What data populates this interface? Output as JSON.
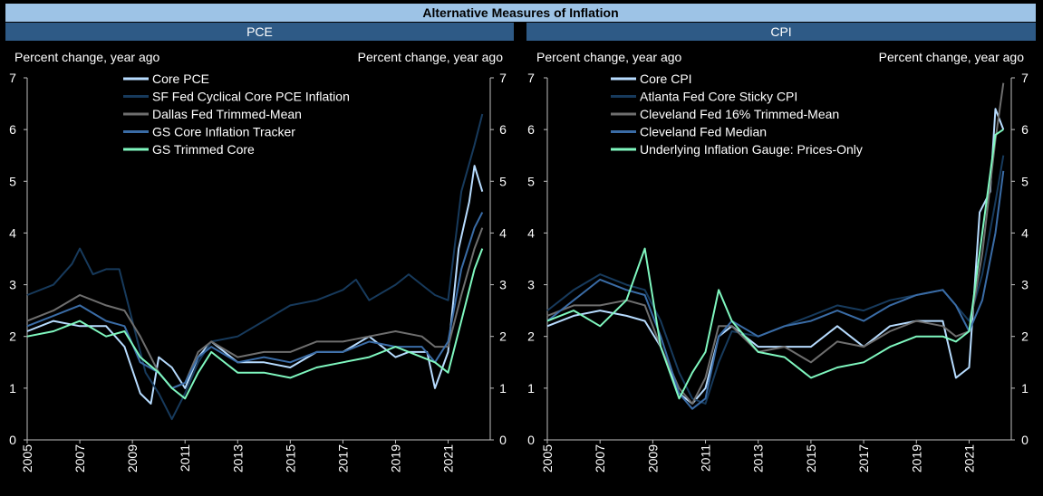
{
  "banner": "Alternative Measures of Inflation",
  "colors": {
    "c1": "#b7dcff",
    "c2": "#173a5c",
    "c3": "#6e6e6e",
    "c4": "#3a6ca6",
    "c5": "#7ff7bf"
  },
  "chart_data": [
    {
      "type": "line",
      "title": "PCE",
      "ylabel_left": "Percent change, year ago",
      "ylabel_right": "Percent change, year ago",
      "ylim": [
        0,
        7
      ],
      "xlim": [
        2005,
        2022.6
      ],
      "yticks": [
        "0",
        "1",
        "2",
        "3",
        "4",
        "5",
        "6",
        "7"
      ],
      "xticks": [
        "2005",
        "2007",
        "2009",
        "2011",
        "2013",
        "2015",
        "2017",
        "2019",
        "2021"
      ],
      "series": [
        {
          "name": "Core PCE",
          "color": "#b7dcff",
          "x": [
            2005,
            2006,
            2007,
            2008,
            2008.7,
            2009.3,
            2009.7,
            2010,
            2010.5,
            2011,
            2011.5,
            2012,
            2013,
            2014,
            2015,
            2016,
            2017,
            2018,
            2019,
            2019.5,
            2020.2,
            2020.5,
            2021,
            2021.4,
            2021.8,
            2022,
            2022.3
          ],
          "values": [
            2.1,
            2.3,
            2.2,
            2.2,
            1.8,
            0.9,
            0.7,
            1.6,
            1.4,
            1.0,
            1.6,
            1.9,
            1.5,
            1.5,
            1.4,
            1.7,
            1.7,
            2.0,
            1.6,
            1.7,
            1.7,
            1.0,
            1.7,
            3.7,
            4.6,
            5.3,
            4.8
          ]
        },
        {
          "name": "SF Fed Cyclical Core PCE Inflation",
          "color": "#173a5c",
          "x": [
            2005,
            2006,
            2006.7,
            2007,
            2007.5,
            2008,
            2008.5,
            2009,
            2009.5,
            2010,
            2010.5,
            2011,
            2011.5,
            2012,
            2013,
            2014,
            2015,
            2016,
            2017,
            2017.5,
            2018,
            2019,
            2019.5,
            2020,
            2020.5,
            2021,
            2021.5,
            2022,
            2022.3
          ],
          "values": [
            2.8,
            3.0,
            3.4,
            3.7,
            3.2,
            3.3,
            3.3,
            2.3,
            1.3,
            0.9,
            0.4,
            0.9,
            1.5,
            1.9,
            2.0,
            2.3,
            2.6,
            2.7,
            2.9,
            3.1,
            2.7,
            3.0,
            3.2,
            3.0,
            2.8,
            2.7,
            4.8,
            5.7,
            6.3
          ]
        },
        {
          "name": "Dallas Fed Trimmed-Mean",
          "color": "#6e6e6e",
          "x": [
            2005,
            2006,
            2007,
            2008,
            2008.7,
            2009.3,
            2010,
            2010.5,
            2011,
            2011.5,
            2012,
            2013,
            2014,
            2015,
            2016,
            2017,
            2018,
            2019,
            2020,
            2020.5,
            2021,
            2021.5,
            2022,
            2022.3
          ],
          "values": [
            2.3,
            2.5,
            2.8,
            2.6,
            2.5,
            2.0,
            1.3,
            1.0,
            1.1,
            1.7,
            1.9,
            1.6,
            1.7,
            1.7,
            1.9,
            1.9,
            2.0,
            2.1,
            2.0,
            1.8,
            1.8,
            2.8,
            3.7,
            4.1
          ]
        },
        {
          "name": "GS Core Inflation Tracker",
          "color": "#3a6ca6",
          "x": [
            2005,
            2006,
            2007,
            2008,
            2008.7,
            2009.3,
            2010,
            2010.5,
            2011,
            2011.5,
            2012,
            2013,
            2014,
            2015,
            2016,
            2017,
            2018,
            2019,
            2020,
            2020.5,
            2021,
            2021.5,
            2022,
            2022.3
          ],
          "values": [
            2.2,
            2.4,
            2.6,
            2.3,
            2.2,
            1.5,
            1.3,
            1.0,
            1.1,
            1.6,
            1.8,
            1.5,
            1.6,
            1.5,
            1.7,
            1.7,
            1.9,
            1.8,
            1.8,
            1.5,
            1.9,
            3.3,
            4.1,
            4.4
          ]
        },
        {
          "name": "GS Trimmed Core",
          "color": "#7ff7bf",
          "x": [
            2005,
            2006,
            2007,
            2008,
            2008.7,
            2009.3,
            2010,
            2010.5,
            2011,
            2011.5,
            2012,
            2013,
            2014,
            2015,
            2016,
            2017,
            2018,
            2019,
            2020,
            2020.5,
            2021,
            2021.5,
            2022,
            2022.3
          ],
          "values": [
            2.0,
            2.1,
            2.3,
            2.0,
            2.1,
            1.6,
            1.3,
            1.0,
            0.8,
            1.3,
            1.7,
            1.3,
            1.3,
            1.2,
            1.4,
            1.5,
            1.6,
            1.8,
            1.6,
            1.5,
            1.3,
            2.3,
            3.3,
            3.7
          ]
        }
      ]
    },
    {
      "type": "line",
      "title": "CPI",
      "ylabel_left": "Percent change, year ago",
      "ylabel_right": "Percent change, year ago",
      "ylim": [
        0,
        7
      ],
      "xlim": [
        2005,
        2022.6
      ],
      "yticks": [
        "0",
        "1",
        "2",
        "3",
        "4",
        "5",
        "6",
        "7"
      ],
      "xticks": [
        "2005",
        "2007",
        "2009",
        "2011",
        "2013",
        "2015",
        "2017",
        "2019",
        "2021"
      ],
      "series": [
        {
          "name": "Core CPI",
          "color": "#b7dcff",
          "x": [
            2005,
            2006,
            2007,
            2008,
            2008.7,
            2009.3,
            2010,
            2010.5,
            2011,
            2011.5,
            2012,
            2013,
            2014,
            2015,
            2016,
            2017,
            2018,
            2019,
            2020,
            2020.5,
            2021,
            2021.4,
            2021.8,
            2022,
            2022.3
          ],
          "values": [
            2.2,
            2.4,
            2.5,
            2.4,
            2.3,
            1.8,
            0.9,
            0.7,
            1.0,
            2.0,
            2.2,
            1.8,
            1.8,
            1.8,
            2.2,
            1.8,
            2.2,
            2.3,
            2.3,
            1.2,
            1.4,
            4.4,
            4.8,
            6.4,
            6.0
          ]
        },
        {
          "name": "Atlanta Fed Core Sticky CPI",
          "color": "#173a5c",
          "x": [
            2005,
            2006,
            2007,
            2008,
            2008.7,
            2009.3,
            2010,
            2010.5,
            2011,
            2011.5,
            2012,
            2013,
            2014,
            2015,
            2016,
            2017,
            2018,
            2019,
            2020,
            2020.5,
            2021,
            2021.5,
            2022,
            2022.3
          ],
          "values": [
            2.5,
            2.9,
            3.2,
            3.0,
            2.9,
            2.3,
            1.3,
            0.8,
            0.7,
            1.5,
            2.1,
            2.0,
            2.2,
            2.4,
            2.6,
            2.5,
            2.7,
            2.8,
            2.9,
            2.6,
            2.3,
            3.2,
            4.6,
            5.5
          ]
        },
        {
          "name": "Cleveland Fed 16% Trimmed-Mean",
          "color": "#6e6e6e",
          "x": [
            2005,
            2006,
            2007,
            2008,
            2008.7,
            2009.3,
            2010,
            2010.5,
            2011,
            2011.5,
            2012,
            2013,
            2014,
            2015,
            2016,
            2017,
            2018,
            2019,
            2020,
            2020.5,
            2021,
            2021.5,
            2022,
            2022.3
          ],
          "values": [
            2.4,
            2.6,
            2.6,
            2.7,
            2.6,
            1.8,
            1.0,
            0.7,
            1.2,
            2.2,
            2.2,
            1.7,
            1.8,
            1.5,
            1.9,
            1.8,
            2.1,
            2.3,
            2.2,
            2.0,
            2.1,
            3.6,
            5.8,
            6.9
          ]
        },
        {
          "name": "Cleveland Fed Median",
          "color": "#3a6ca6",
          "x": [
            2005,
            2006,
            2007,
            2008,
            2008.7,
            2009.3,
            2010,
            2010.5,
            2011,
            2011.5,
            2012,
            2013,
            2014,
            2015,
            2016,
            2017,
            2018,
            2019,
            2020,
            2020.5,
            2021,
            2021.5,
            2022,
            2022.3
          ],
          "values": [
            2.3,
            2.7,
            3.1,
            2.9,
            2.8,
            2.0,
            0.9,
            0.6,
            0.8,
            2.0,
            2.3,
            2.0,
            2.2,
            2.3,
            2.5,
            2.3,
            2.6,
            2.8,
            2.9,
            2.6,
            2.1,
            2.7,
            4.0,
            5.2
          ]
        },
        {
          "name": "Underlying Inflation Gauge: Prices-Only",
          "color": "#7ff7bf",
          "x": [
            2005,
            2006,
            2007,
            2008,
            2008.7,
            2009.3,
            2010,
            2010.5,
            2011,
            2011.5,
            2012,
            2013,
            2014,
            2015,
            2016,
            2017,
            2018,
            2019,
            2020,
            2020.5,
            2021,
            2021.5,
            2022,
            2022.3
          ],
          "values": [
            2.3,
            2.5,
            2.2,
            2.7,
            3.7,
            1.8,
            0.8,
            1.3,
            1.7,
            2.9,
            2.3,
            1.7,
            1.6,
            1.2,
            1.4,
            1.5,
            1.8,
            2.0,
            2.0,
            1.9,
            2.1,
            4.0,
            5.9,
            6.0
          ]
        }
      ]
    }
  ]
}
